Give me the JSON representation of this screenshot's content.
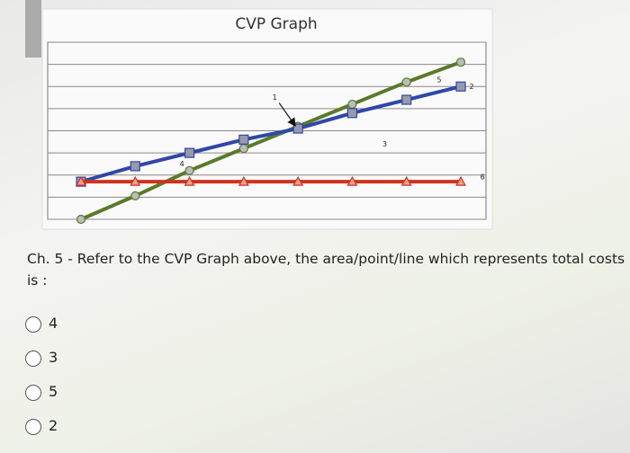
{
  "chart_data": {
    "type": "line",
    "title": "CVP Graph",
    "x": [
      0,
      1,
      2,
      3,
      4,
      5,
      6,
      7
    ],
    "xlim": [
      0,
      7
    ],
    "ylim": [
      0,
      8
    ],
    "yticks": [
      0,
      1,
      2,
      3,
      4,
      5,
      6,
      7,
      8
    ],
    "grid": true,
    "series": [
      {
        "color": "#5a7a2a",
        "marker": "circle",
        "values": [
          0,
          1.06,
          2.2,
          3.2,
          4.2,
          5.2,
          6.2,
          7.1
        ]
      },
      {
        "color": "#2f47a8",
        "marker": "square",
        "values": [
          1.7,
          2.4,
          3.0,
          3.6,
          4.1,
          4.8,
          5.4,
          6.0
        ]
      },
      {
        "color": "#d0321e",
        "marker": "triangle",
        "values": [
          1.7,
          1.7,
          1.7,
          1.7,
          1.7,
          1.7,
          1.7,
          1.7
        ]
      }
    ],
    "annotations": [
      {
        "text": "1",
        "xytext": [
          3.57,
          5.5
        ],
        "xy": [
          4,
          4.1
        ]
      },
      {
        "text": "2",
        "xy": [
          7.2,
          6.0
        ]
      },
      {
        "text": "3",
        "xy": [
          5.6,
          3.4
        ]
      },
      {
        "text": "4",
        "xy": [
          1.86,
          2.5
        ]
      },
      {
        "text": "5",
        "xy": [
          6.6,
          6.3
        ]
      },
      {
        "text": "6",
        "xy": [
          7.4,
          1.9
        ]
      }
    ]
  },
  "question": {
    "text": "Ch. 5 - Refer to the CVP Graph above, the area/point/line which represents total costs is :",
    "options": [
      "4",
      "3",
      "5",
      "2"
    ]
  }
}
